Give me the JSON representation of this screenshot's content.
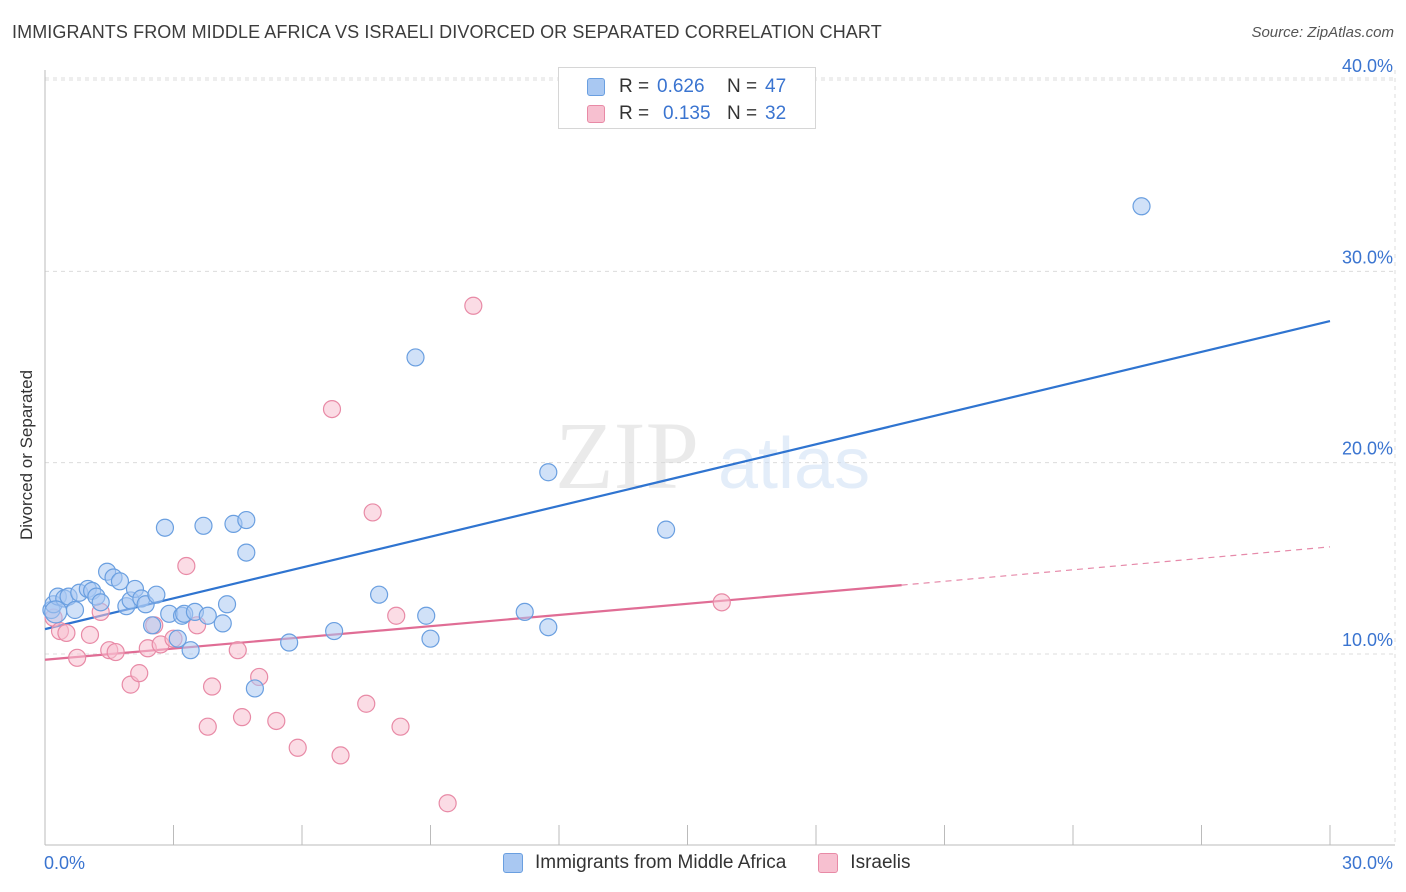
{
  "title": "IMMIGRANTS FROM MIDDLE AFRICA VS ISRAELI DIVORCED OR SEPARATED CORRELATION CHART",
  "source": "Source: ZipAtlas.com",
  "watermark": {
    "zip": "ZIP",
    "atlas": "atlas"
  },
  "legend_top": [
    {
      "r_label": "R =",
      "r_value": "0.626",
      "n_label": "N =",
      "n_value": "47",
      "color": "#a9c8f2",
      "border": "#6a9fe0"
    },
    {
      "r_label": "R =",
      "r_value": "0.135",
      "n_label": "N =",
      "n_value": "32",
      "color": "#f7c0d0",
      "border": "#e88aa6"
    }
  ],
  "legend_bottom": [
    {
      "label": "Immigrants from Middle Africa",
      "color": "#a9c8f2",
      "border": "#6a9fe0"
    },
    {
      "label": "Israelis",
      "color": "#f7c0d0",
      "border": "#e88aa6"
    }
  ],
  "chart_data": {
    "type": "scatter",
    "title": "IMMIGRANTS FROM MIDDLE AFRICA VS ISRAELI DIVORCED OR SEPARATED CORRELATION CHART",
    "xlabel": "",
    "ylabel": "Divorced or Separated",
    "xlim": [
      0,
      30
    ],
    "ylim": [
      0,
      40.8
    ],
    "x_tick_labels": [
      "0.0%",
      "30.0%"
    ],
    "y_tick_labels": [
      {
        "v": 10,
        "label": "10.0%"
      },
      {
        "v": 20,
        "label": "20.0%"
      },
      {
        "v": 30,
        "label": "30.0%"
      },
      {
        "v": 40,
        "label": "40.0%"
      }
    ],
    "grid": true,
    "series": [
      {
        "name": "Immigrants from Middle Africa",
        "color": "#6a9fe0",
        "fill": "#a9c8f2",
        "trend": {
          "x": [
            0,
            30
          ],
          "y": [
            11.3,
            27.4
          ],
          "color": "#2f74d0"
        },
        "points": [
          [
            0.15,
            12.3
          ],
          [
            0.2,
            12.6
          ],
          [
            0.3,
            13.0
          ],
          [
            0.45,
            12.9
          ],
          [
            0.55,
            13.0
          ],
          [
            0.7,
            12.3
          ],
          [
            0.8,
            13.2
          ],
          [
            1.0,
            13.4
          ],
          [
            1.1,
            13.3
          ],
          [
            1.2,
            13.0
          ],
          [
            1.3,
            12.7
          ],
          [
            1.45,
            14.3
          ],
          [
            1.6,
            14.0
          ],
          [
            1.75,
            13.8
          ],
          [
            1.9,
            12.5
          ],
          [
            2.0,
            12.8
          ],
          [
            2.1,
            13.4
          ],
          [
            2.25,
            12.9
          ],
          [
            2.35,
            12.6
          ],
          [
            2.5,
            11.5
          ],
          [
            2.6,
            13.1
          ],
          [
            2.8,
            16.6
          ],
          [
            2.9,
            12.1
          ],
          [
            3.1,
            10.8
          ],
          [
            3.2,
            12.0
          ],
          [
            3.25,
            12.1
          ],
          [
            3.4,
            10.2
          ],
          [
            3.5,
            12.2
          ],
          [
            3.7,
            16.7
          ],
          [
            3.8,
            12.0
          ],
          [
            4.15,
            11.6
          ],
          [
            4.25,
            12.6
          ],
          [
            4.4,
            16.8
          ],
          [
            4.7,
            15.3
          ],
          [
            4.7,
            17.0
          ],
          [
            4.9,
            8.2
          ],
          [
            5.7,
            10.6
          ],
          [
            6.75,
            11.2
          ],
          [
            7.8,
            13.1
          ],
          [
            8.65,
            25.5
          ],
          [
            8.9,
            12.0
          ],
          [
            9.0,
            10.8
          ],
          [
            11.2,
            12.2
          ],
          [
            11.75,
            11.4
          ],
          [
            11.75,
            19.5
          ],
          [
            14.5,
            16.5
          ],
          [
            25.6,
            33.4
          ]
        ]
      },
      {
        "name": "Israelis",
        "color": "#e88aa6",
        "fill": "#f7c0d0",
        "trend": {
          "x": [
            0,
            20
          ],
          "y": [
            9.7,
            13.6
          ],
          "color": "#e06d95"
        },
        "trend_dashed": {
          "x": [
            20,
            30
          ],
          "y": [
            13.6,
            15.6
          ]
        },
        "points": [
          [
            0.2,
            11.9
          ],
          [
            0.35,
            11.2
          ],
          [
            0.5,
            11.1
          ],
          [
            0.75,
            9.8
          ],
          [
            1.05,
            11.0
          ],
          [
            1.3,
            12.2
          ],
          [
            1.5,
            10.2
          ],
          [
            1.65,
            10.1
          ],
          [
            2.0,
            8.4
          ],
          [
            2.2,
            9.0
          ],
          [
            2.4,
            10.3
          ],
          [
            2.55,
            11.5
          ],
          [
            2.7,
            10.5
          ],
          [
            3.0,
            10.8
          ],
          [
            3.3,
            14.6
          ],
          [
            3.55,
            11.5
          ],
          [
            3.8,
            6.2
          ],
          [
            3.9,
            8.3
          ],
          [
            4.5,
            10.2
          ],
          [
            4.6,
            6.7
          ],
          [
            5.0,
            8.8
          ],
          [
            5.4,
            6.5
          ],
          [
            5.9,
            5.1
          ],
          [
            6.7,
            22.8
          ],
          [
            6.9,
            4.7
          ],
          [
            7.5,
            7.4
          ],
          [
            7.65,
            17.4
          ],
          [
            8.2,
            12.0
          ],
          [
            8.3,
            6.2
          ],
          [
            9.4,
            2.2
          ],
          [
            10.0,
            28.2
          ],
          [
            15.8,
            12.7
          ]
        ]
      }
    ]
  }
}
